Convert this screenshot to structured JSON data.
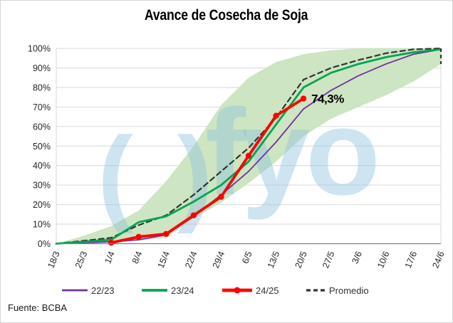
{
  "title": "Avance de Cosecha de Soja",
  "source": "Fuente: BCBA",
  "watermark": {
    "left_glyphs": "( )",
    "logo_text": "fyo"
  },
  "colors": {
    "grid": "#d9d9d9",
    "frame": "#d9d9d9",
    "axis": "#7f7f7f",
    "text": "#262626",
    "band_fill": "#cde5c2",
    "watermark": "#8dbede",
    "annotation": "#000000"
  },
  "chart_data": {
    "type": "line",
    "title": "Avance de Cosecha de Soja",
    "xlabel": "",
    "ylabel": "",
    "ylim": [
      0,
      100
    ],
    "grid": true,
    "legend_position": "bottom",
    "categories": [
      "18/3",
      "25/3",
      "1/4",
      "8/4",
      "15/4",
      "22/4",
      "29/4",
      "6/5",
      "13/5",
      "20/5",
      "27/5",
      "3/6",
      "10/6",
      "17/6",
      "24/6"
    ],
    "yticks": [
      "0%",
      "10%",
      "20%",
      "30%",
      "40%",
      "50%",
      "60%",
      "70%",
      "80%",
      "90%",
      "100%"
    ],
    "band": {
      "name": "rango-max-min",
      "max": [
        0,
        4,
        9,
        17,
        32,
        50,
        71,
        85,
        93,
        97,
        99,
        100,
        100,
        100,
        100
      ],
      "min": [
        0,
        0,
        0.5,
        1.5,
        3,
        13,
        21,
        31,
        42,
        55,
        64,
        70,
        76,
        83,
        92
      ],
      "right_edge_dashed": true
    },
    "series": [
      {
        "name": "22/23",
        "color": "#7030a0",
        "dash": false,
        "width": 1.8,
        "markers": false,
        "z": 1,
        "values": [
          0,
          0.5,
          1,
          2,
          4.5,
          14,
          25,
          37,
          52,
          69,
          78.5,
          86,
          92,
          97,
          99.5
        ]
      },
      {
        "name": "23/24",
        "color": "#00a550",
        "dash": false,
        "width": 2.8,
        "markers": false,
        "z": 3,
        "values": [
          0,
          1,
          2,
          11,
          14,
          21.5,
          30,
          42,
          61,
          80,
          87.5,
          92,
          95.5,
          98,
          99.5
        ]
      },
      {
        "name": "24/25",
        "color": "#fe0000",
        "dash": false,
        "width": 3.8,
        "markers": true,
        "z": 4,
        "values": [
          null,
          null,
          0.5,
          3.5,
          5,
          14.5,
          24,
          45,
          65.5,
          74.3,
          null,
          null,
          null,
          null,
          null
        ]
      },
      {
        "name": "Promedio",
        "color": "#333333",
        "dash": true,
        "width": 2.2,
        "markers": false,
        "z": 2,
        "values": [
          0,
          1.5,
          3,
          9.5,
          14.5,
          25,
          37,
          49,
          64.5,
          84,
          90,
          94,
          97.5,
          99.5,
          100
        ]
      }
    ],
    "annotation": {
      "text": "74,3%",
      "series": "24/25",
      "category": "20/5",
      "value": 74.3
    }
  }
}
